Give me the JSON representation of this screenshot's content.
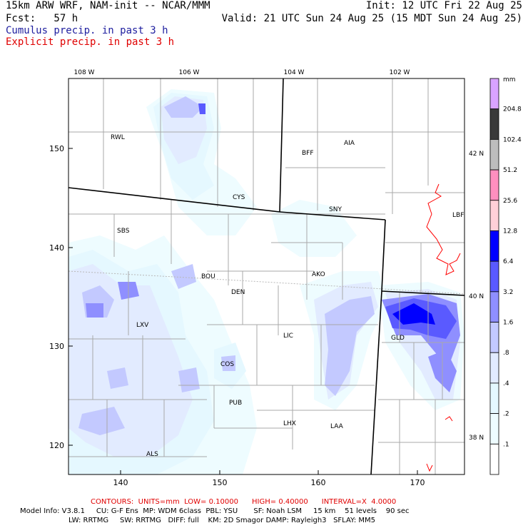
{
  "header": {
    "model_line": "15km ARW WRF, NAM-init -- NCAR/MMM",
    "init_line": "Init: 12 UTC Fri 22 Aug 25",
    "fcst_line": "Fcst:   57 h",
    "valid_line": "Valid: 21 UTC Sun 24 Aug 25 (15 MDT Sun 24 Aug 25)",
    "cumulus_label": "Cumulus precip. in past 3 h",
    "explicit_label": "Explicit precip. in past 3 h",
    "cumulus_color": "#2020a0",
    "explicit_color": "#e00000"
  },
  "map": {
    "top_lon_labels": [
      "108 W",
      "106 W",
      "104 W",
      "102 W"
    ],
    "right_lat_labels": [
      "42 N",
      "40 N",
      "38 N"
    ],
    "left_grid_labels": [
      "150",
      "140",
      "130",
      "120"
    ],
    "bottom_grid_labels": [
      "140",
      "150",
      "160",
      "170"
    ],
    "stations": [
      {
        "id": "RWL"
      },
      {
        "id": "BFF"
      },
      {
        "id": "AIA"
      },
      {
        "id": "CYS"
      },
      {
        "id": "SNY"
      },
      {
        "id": "SBS"
      },
      {
        "id": "AKO"
      },
      {
        "id": "BOU"
      },
      {
        "id": "DEN"
      },
      {
        "id": "LXV"
      },
      {
        "id": "LIC"
      },
      {
        "id": "GLD"
      },
      {
        "id": "COS"
      },
      {
        "id": "PUB"
      },
      {
        "id": "LHX"
      },
      {
        "id": "LAA"
      },
      {
        "id": "ALS"
      },
      {
        "id": "LBF"
      }
    ]
  },
  "colorbar": {
    "unit": "mm",
    "levels": [
      "204.8",
      "102.4",
      "51.2",
      "25.6",
      "12.8",
      "6.4",
      "3.2",
      "1.6",
      ".8",
      ".4",
      ".2",
      ".1"
    ],
    "colors": [
      "#d9a3ff",
      "#3a3a3a",
      "#bdbdbd",
      "#ff8fbf",
      "#ffd0d8",
      "#0000ff",
      "#5a5aff",
      "#8f8fff",
      "#c3c9ff",
      "#e2ebff",
      "#e5f8ff",
      "#eefcff",
      "#ffffff"
    ]
  },
  "footer": {
    "contours": "CONTOURS:  UNITS=mm  LOW= 0.10000      HIGH= 0.40000      INTERVAL=X  4.0000",
    "model_info_1": "Model Info: V3.8.1     CU: G-F Ens  MP: WDM 6class  PBL: YSU       SF: Noah LSM     15 km    51 levels    90 sec",
    "model_info_2": "LW: RRTMG     SW: RRTMG   DIFF: full    KM: 2D Smagor DAMP: Rayleigh3   SFLAY: MM5"
  }
}
